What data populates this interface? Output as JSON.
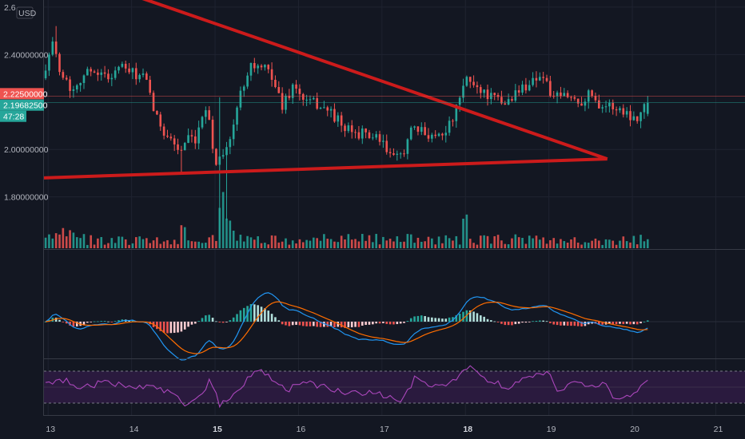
{
  "chart_data": [
    {
      "type": "candlestick",
      "currency": "USD",
      "yaxis": {
        "ticks": [
          1.8,
          2.0,
          2.4,
          2.6
        ],
        "tick_labels": [
          "1.80000000",
          "2.00000000",
          "2.40000000",
          "2.6"
        ],
        "ylim": [
          1.58,
          2.63
        ]
      },
      "xaxis": {
        "ticks": [
          13,
          14,
          15,
          16,
          17,
          18,
          19,
          20,
          21
        ],
        "tick_labels": [
          "13",
          "14",
          "15",
          "16",
          "17",
          "18",
          "19",
          "20",
          "21"
        ],
        "bold": [
          "15",
          "18"
        ],
        "xlim": [
          12.95,
          21.35
        ]
      },
      "price_tags": [
        {
          "value": 2.225,
          "label": "2.22500000",
          "color": "#ef5350"
        },
        {
          "value": 2.196825,
          "label": "2.19682500",
          "color": "#26a69a"
        }
      ],
      "countdown": "47:28",
      "anchors": [
        [
          12.97,
          2.3
        ],
        [
          13.08,
          2.45
        ],
        [
          13.2,
          2.33
        ],
        [
          13.32,
          2.25
        ],
        [
          13.45,
          2.31
        ],
        [
          13.6,
          2.34
        ],
        [
          13.75,
          2.3
        ],
        [
          13.9,
          2.35
        ],
        [
          14.05,
          2.32
        ],
        [
          14.2,
          2.3
        ],
        [
          14.35,
          2.12
        ],
        [
          14.5,
          2.05
        ],
        [
          14.62,
          1.99
        ],
        [
          14.72,
          2.04
        ],
        [
          14.82,
          2.02
        ],
        [
          14.92,
          2.2
        ],
        [
          14.98,
          2.12
        ],
        [
          15.03,
          1.93
        ],
        [
          15.12,
          1.99
        ],
        [
          15.22,
          2.03
        ],
        [
          15.32,
          2.2
        ],
        [
          15.45,
          2.36
        ],
        [
          15.6,
          2.34
        ],
        [
          15.72,
          2.32
        ],
        [
          15.84,
          2.18
        ],
        [
          15.98,
          2.27
        ],
        [
          16.12,
          2.2
        ],
        [
          16.28,
          2.19
        ],
        [
          16.45,
          2.15
        ],
        [
          16.6,
          2.08
        ],
        [
          16.75,
          2.07
        ],
        [
          16.9,
          2.06
        ],
        [
          17.05,
          2.02
        ],
        [
          17.2,
          1.95
        ],
        [
          17.3,
          2.0
        ],
        [
          17.4,
          2.08
        ],
        [
          17.55,
          2.07
        ],
        [
          17.7,
          2.06
        ],
        [
          17.85,
          2.1
        ],
        [
          17.95,
          2.18
        ],
        [
          18.05,
          2.3
        ],
        [
          18.2,
          2.26
        ],
        [
          18.35,
          2.22
        ],
        [
          18.5,
          2.19
        ],
        [
          18.65,
          2.24
        ],
        [
          18.8,
          2.28
        ],
        [
          18.95,
          2.32
        ],
        [
          19.1,
          2.21
        ],
        [
          19.25,
          2.23
        ],
        [
          19.4,
          2.2
        ],
        [
          19.55,
          2.24
        ],
        [
          19.65,
          2.19
        ],
        [
          19.8,
          2.18
        ],
        [
          19.95,
          2.16
        ],
        [
          20.08,
          2.13
        ],
        [
          20.2,
          2.197
        ]
      ],
      "candle_interval_days": 0.0417
    },
    {
      "type": "line",
      "subtitle_note": "descending triangle pattern drawn on price",
      "series": [
        {
          "color": "#cc1b1b",
          "points": [
            [
              14.1,
              2.64
            ],
            [
              19.7,
              1.96
            ]
          ]
        },
        {
          "color": "#cc1b1b",
          "points": [
            [
              12.95,
              1.88
            ],
            [
              19.7,
              1.96
            ]
          ]
        }
      ]
    },
    {
      "type": "bar",
      "panel": "volume",
      "up_color": "#26a69a",
      "down_color": "#ef5350",
      "spikes": [
        [
          14.6,
          2.2
        ],
        [
          15.1,
          4.5
        ],
        [
          15.2,
          2.5
        ],
        [
          18.0,
          2.4
        ]
      ]
    },
    {
      "type": "line",
      "panel": "MACD",
      "macd_color": "#2196f3",
      "signal_color": "#ff6d00",
      "hist_up": "#26a69a",
      "hist_down": "#ef5350",
      "hist_up_light": "#b2dfdb",
      "hist_down_light": "#ffcdd2"
    },
    {
      "type": "line",
      "panel": "RSI",
      "line_color": "#ab47bc",
      "band_upper": 70,
      "band_lower": 30,
      "band_fill": "#2a1a3e",
      "ylim": [
        15,
        85
      ],
      "anchors": [
        [
          12.97,
          52
        ],
        [
          13.15,
          60
        ],
        [
          13.4,
          50
        ],
        [
          13.7,
          56
        ],
        [
          14.0,
          52
        ],
        [
          14.3,
          48
        ],
        [
          14.55,
          40
        ],
        [
          14.65,
          25
        ],
        [
          14.8,
          35
        ],
        [
          14.95,
          60
        ],
        [
          15.05,
          28
        ],
        [
          15.2,
          40
        ],
        [
          15.35,
          55
        ],
        [
          15.5,
          72
        ],
        [
          15.65,
          65
        ],
        [
          15.85,
          44
        ],
        [
          16.05,
          58
        ],
        [
          16.3,
          50
        ],
        [
          16.6,
          42
        ],
        [
          16.9,
          44
        ],
        [
          17.1,
          36
        ],
        [
          17.25,
          32
        ],
        [
          17.4,
          62
        ],
        [
          17.6,
          50
        ],
        [
          17.8,
          54
        ],
        [
          18.05,
          78
        ],
        [
          18.25,
          60
        ],
        [
          18.5,
          50
        ],
        [
          18.75,
          64
        ],
        [
          19.0,
          68
        ],
        [
          19.1,
          44
        ],
        [
          19.3,
          56
        ],
        [
          19.5,
          48
        ],
        [
          19.65,
          55
        ],
        [
          19.8,
          36
        ],
        [
          20.0,
          42
        ],
        [
          20.2,
          58
        ]
      ]
    }
  ]
}
